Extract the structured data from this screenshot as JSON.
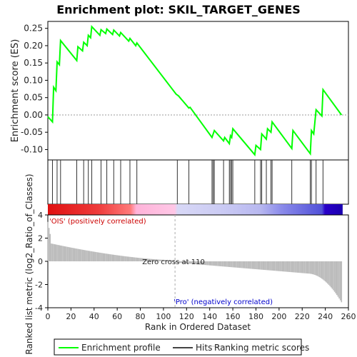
{
  "chart_data": {
    "type": "line",
    "title": "Enrichment plot: SKIL_TARGET_GENES",
    "es_panel": {
      "ylabel": "Enrichment score (ES)",
      "ylim": [
        -0.13,
        0.27
      ],
      "yticks": [
        "0.25",
        "0.20",
        "0.15",
        "0.10",
        "0.05",
        "0.00",
        "-0.05",
        "-0.10"
      ],
      "ytick_values": [
        0.25,
        0.2,
        0.15,
        0.1,
        0.05,
        0.0,
        -0.05,
        -0.1
      ],
      "series_name": "Enrichment profile",
      "color": "#00ff00",
      "points": [
        [
          0,
          -0.005
        ],
        [
          4,
          -0.02
        ],
        [
          5,
          0.08
        ],
        [
          7,
          0.07
        ],
        [
          8,
          0.153
        ],
        [
          10,
          0.145
        ],
        [
          11,
          0.215
        ],
        [
          25,
          0.157
        ],
        [
          26,
          0.197
        ],
        [
          30,
          0.185
        ],
        [
          31,
          0.21
        ],
        [
          34,
          0.2
        ],
        [
          35,
          0.23
        ],
        [
          37,
          0.223
        ],
        [
          38,
          0.255
        ],
        [
          45,
          0.23
        ],
        [
          46,
          0.246
        ],
        [
          50,
          0.235
        ],
        [
          51,
          0.248
        ],
        [
          56,
          0.232
        ],
        [
          57,
          0.245
        ],
        [
          62,
          0.228
        ],
        [
          63,
          0.238
        ],
        [
          70,
          0.213
        ],
        [
          71,
          0.221
        ],
        [
          76,
          0.2
        ],
        [
          77,
          0.208
        ],
        [
          111,
          0.06
        ],
        [
          113,
          0.055
        ],
        [
          122,
          0.02
        ],
        [
          123,
          0.022
        ],
        [
          142,
          -0.065
        ],
        [
          143,
          -0.055
        ],
        [
          144,
          -0.045
        ],
        [
          152,
          -0.075
        ],
        [
          153,
          -0.065
        ],
        [
          157,
          -0.083
        ],
        [
          158,
          -0.06
        ],
        [
          159,
          -0.065
        ],
        [
          160,
          -0.04
        ],
        [
          179,
          -0.115
        ],
        [
          180,
          -0.088
        ],
        [
          184,
          -0.1
        ],
        [
          185,
          -0.055
        ],
        [
          189,
          -0.07
        ],
        [
          190,
          -0.04
        ],
        [
          193,
          -0.05
        ],
        [
          194,
          -0.02
        ],
        [
          211,
          -0.097
        ],
        [
          212,
          -0.045
        ],
        [
          227,
          -0.112
        ],
        [
          228,
          -0.045
        ],
        [
          230,
          -0.055
        ],
        [
          232,
          0.015
        ],
        [
          237,
          -0.003
        ],
        [
          238,
          0.073
        ],
        [
          254,
          0.0
        ]
      ]
    },
    "hits": [
      4,
      8,
      11,
      25,
      31,
      35,
      38,
      46,
      51,
      57,
      63,
      71,
      77,
      112,
      122,
      142,
      143,
      144,
      152,
      157,
      158,
      159,
      160,
      179,
      184,
      185,
      189,
      193,
      194,
      211,
      227,
      228,
      232,
      238
    ],
    "rank_panel": {
      "ylabel": "Ranked list metric (log2_Ratio_of_Classes)",
      "xlabel": "Rank in Ordered Dataset",
      "xlim": [
        0,
        260
      ],
      "ylim": [
        -4.0,
        4.0
      ],
      "xticks": [
        "0",
        "20",
        "40",
        "60",
        "80",
        "100",
        "120",
        "140",
        "160",
        "180",
        "200",
        "220",
        "240",
        "260"
      ],
      "xtick_values": [
        0,
        20,
        40,
        60,
        80,
        100,
        120,
        140,
        160,
        180,
        200,
        220,
        240,
        260
      ],
      "yticks": [
        "4",
        "2",
        "0",
        "-2",
        "-4"
      ],
      "ytick_values": [
        4,
        2,
        0,
        -2,
        -4
      ],
      "zero_cross_label": "Zero cross at 110",
      "zero_cross": 110,
      "n_genes": 255,
      "positive_label": "'OIS' (positively correlated)",
      "negative_label": "'Pro' (negatively correlated)",
      "positive_color": "#cc0000",
      "negative_color": "#0000cc",
      "bar_color": "#bbbbbb"
    },
    "legend": [
      {
        "label": "Enrichment profile",
        "color": "#00ff00"
      },
      {
        "label": "Hits",
        "color": "#444444"
      },
      {
        "label": "Ranking metric scores",
        "color": "#cccccc"
      }
    ]
  }
}
